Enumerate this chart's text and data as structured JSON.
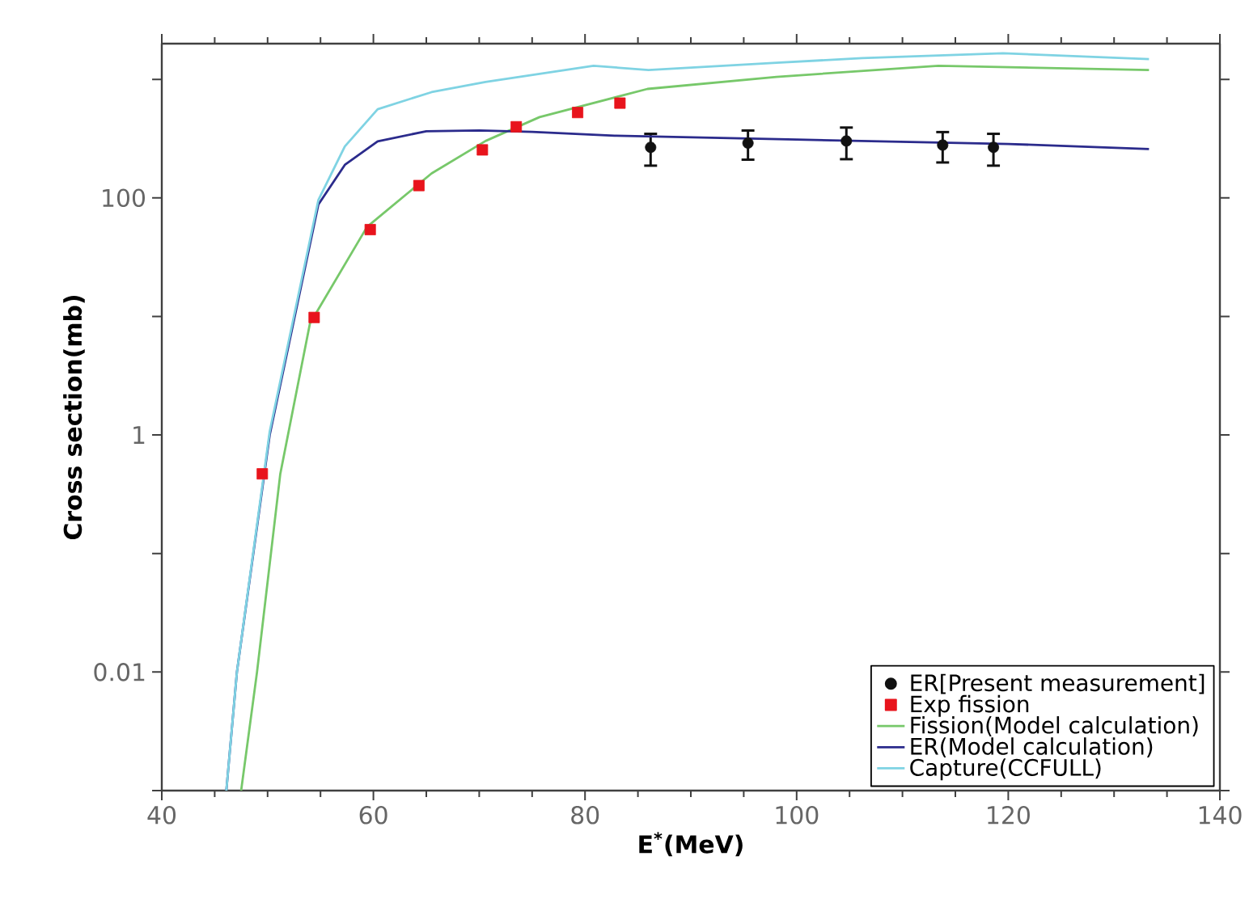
{
  "chart_data": {
    "type": "line",
    "xlabel": "E$^{*}$(MeV)",
    "ylabel": "Cross section(mb)",
    "xlim": [
      40,
      140
    ],
    "xticks": [
      40,
      60,
      80,
      100,
      120,
      140
    ],
    "ylim": [
      0.001,
      2000
    ],
    "yticks": [
      {
        "value": 0.001,
        "label": null
      },
      {
        "value": 0.01,
        "label": "0.01"
      },
      {
        "value": 0.1,
        "label": null
      },
      {
        "value": 1,
        "label": "1"
      },
      {
        "value": 10,
        "label": null
      },
      {
        "value": 100,
        "label": "100"
      },
      {
        "value": 1000,
        "label": null
      }
    ],
    "log": "y",
    "grid": false,
    "legend": "bottom right",
    "series": [
      {
        "name": "ER[Present measurement]",
        "type": "scatter",
        "marker": "circle",
        "color": "#111111",
        "x": [
          86.2,
          95.4,
          104.7,
          113.8,
          118.6
        ],
        "values": [
          267,
          290,
          302,
          279,
          267
        ],
        "errors": [
          80,
          80,
          90,
          80,
          80
        ]
      },
      {
        "name": "Exp fission",
        "type": "scatter",
        "marker": "square",
        "color": "#e8141c",
        "x": [
          49.5,
          54.4,
          59.7,
          64.3,
          70.3,
          73.5,
          79.3,
          83.3
        ],
        "values": [
          0.47,
          9.8,
          54,
          127,
          254,
          398,
          525,
          630
        ]
      },
      {
        "name": "Fission(Model calculation)",
        "color": "#77c86a",
        "x": [
          47.5,
          49.0,
          51.2,
          54.0,
          59.4,
          65.5,
          70.6,
          75.7,
          85.9,
          98.1,
          113.4,
          133.3
        ],
        "values": [
          0.001,
          0.01,
          0.47,
          8.7,
          57,
          161,
          302,
          480,
          830,
          1050,
          1300,
          1200
        ]
      },
      {
        "name": "ER(Model calculation)",
        "color": "#2b2b8c",
        "x": [
          46.1,
          47.1,
          50.2,
          54.8,
          57.3,
          60.4,
          65.0,
          70.0,
          75.0,
          82.8,
          100.0,
          120.0,
          133.3
        ],
        "values": [
          0.001,
          0.01,
          1.0,
          88,
          190,
          300,
          365,
          370,
          360,
          335,
          310,
          285,
          258
        ]
      },
      {
        "name": "Capture(CCFULL)",
        "color": "#7fd3e3",
        "x": [
          46.1,
          47.1,
          50.2,
          54.8,
          57.3,
          60.4,
          65.5,
          70.6,
          80.8,
          86.0,
          98.1,
          106.2,
          119.5,
          133.3
        ],
        "values": [
          0.001,
          0.01,
          1.07,
          96,
          272,
          560,
          780,
          950,
          1300,
          1200,
          1380,
          1510,
          1660,
          1480
        ]
      }
    ]
  }
}
